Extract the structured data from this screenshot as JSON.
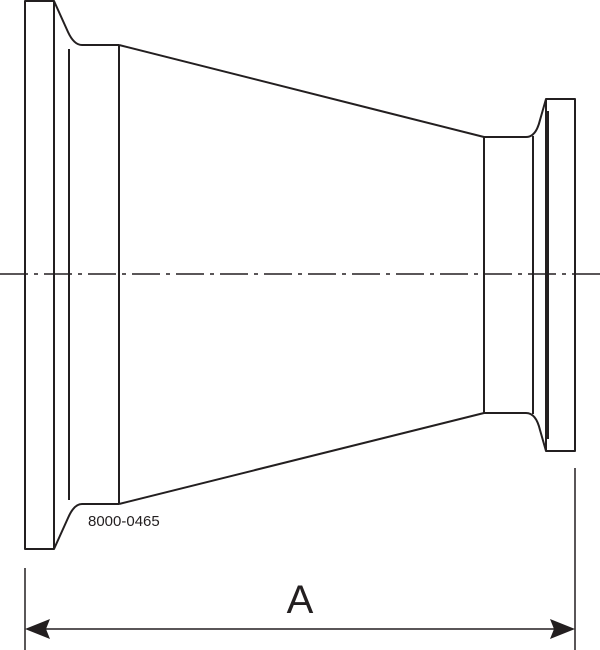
{
  "drawing": {
    "part_number": "8000-0465",
    "dimension_label": "A",
    "line_color": "#231f20"
  }
}
